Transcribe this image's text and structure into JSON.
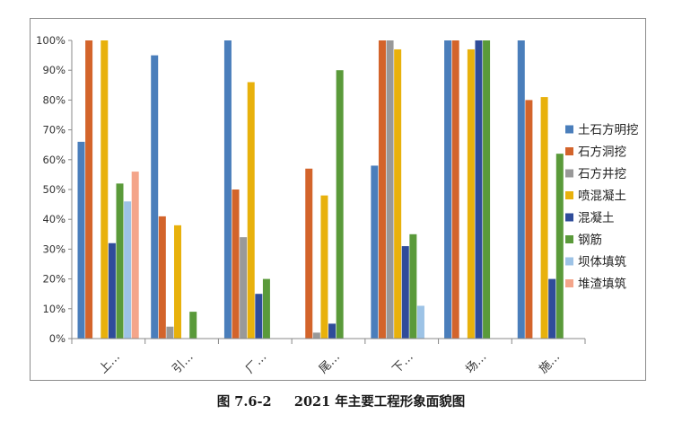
{
  "caption": "图 7.6-2     2021 年主要工程形象面貌图",
  "chart_data": {
    "type": "bar",
    "categories": [
      "上…",
      "引…",
      "厂…",
      "尾…",
      "下…",
      "场…",
      "施…"
    ],
    "yticks": [
      "0%",
      "10%",
      "20%",
      "30%",
      "40%",
      "50%",
      "60%",
      "70%",
      "80%",
      "90%",
      "100%"
    ],
    "ylim": [
      0,
      100
    ],
    "legend_position": "right",
    "grid": false,
    "series": [
      {
        "name": "土石方明挖",
        "color": "#4a7ebb",
        "values": [
          66,
          95,
          100,
          0,
          58,
          100,
          100
        ]
      },
      {
        "name": "石方洞挖",
        "color": "#d3642b",
        "values": [
          100,
          41,
          50,
          57,
          100,
          100,
          80
        ]
      },
      {
        "name": "石方井挖",
        "color": "#999999",
        "values": [
          0,
          4,
          34,
          2,
          100,
          0,
          0
        ]
      },
      {
        "name": "喷混凝土",
        "color": "#e8b10c",
        "values": [
          100,
          38,
          86,
          48,
          97,
          97,
          81
        ]
      },
      {
        "name": "混凝土",
        "color": "#2f4c9a",
        "values": [
          32,
          0,
          15,
          5,
          31,
          100,
          20
        ]
      },
      {
        "name": "钢筋",
        "color": "#5a9a3a",
        "values": [
          52,
          9,
          20,
          90,
          35,
          100,
          62
        ]
      },
      {
        "name": "坝体填筑",
        "color": "#9dc3e6",
        "values": [
          46,
          0,
          0,
          0,
          11,
          0,
          0
        ]
      },
      {
        "name": "堆渣填筑",
        "color": "#f4a58a",
        "values": [
          56,
          0,
          0,
          0,
          0,
          0,
          0
        ]
      }
    ]
  }
}
